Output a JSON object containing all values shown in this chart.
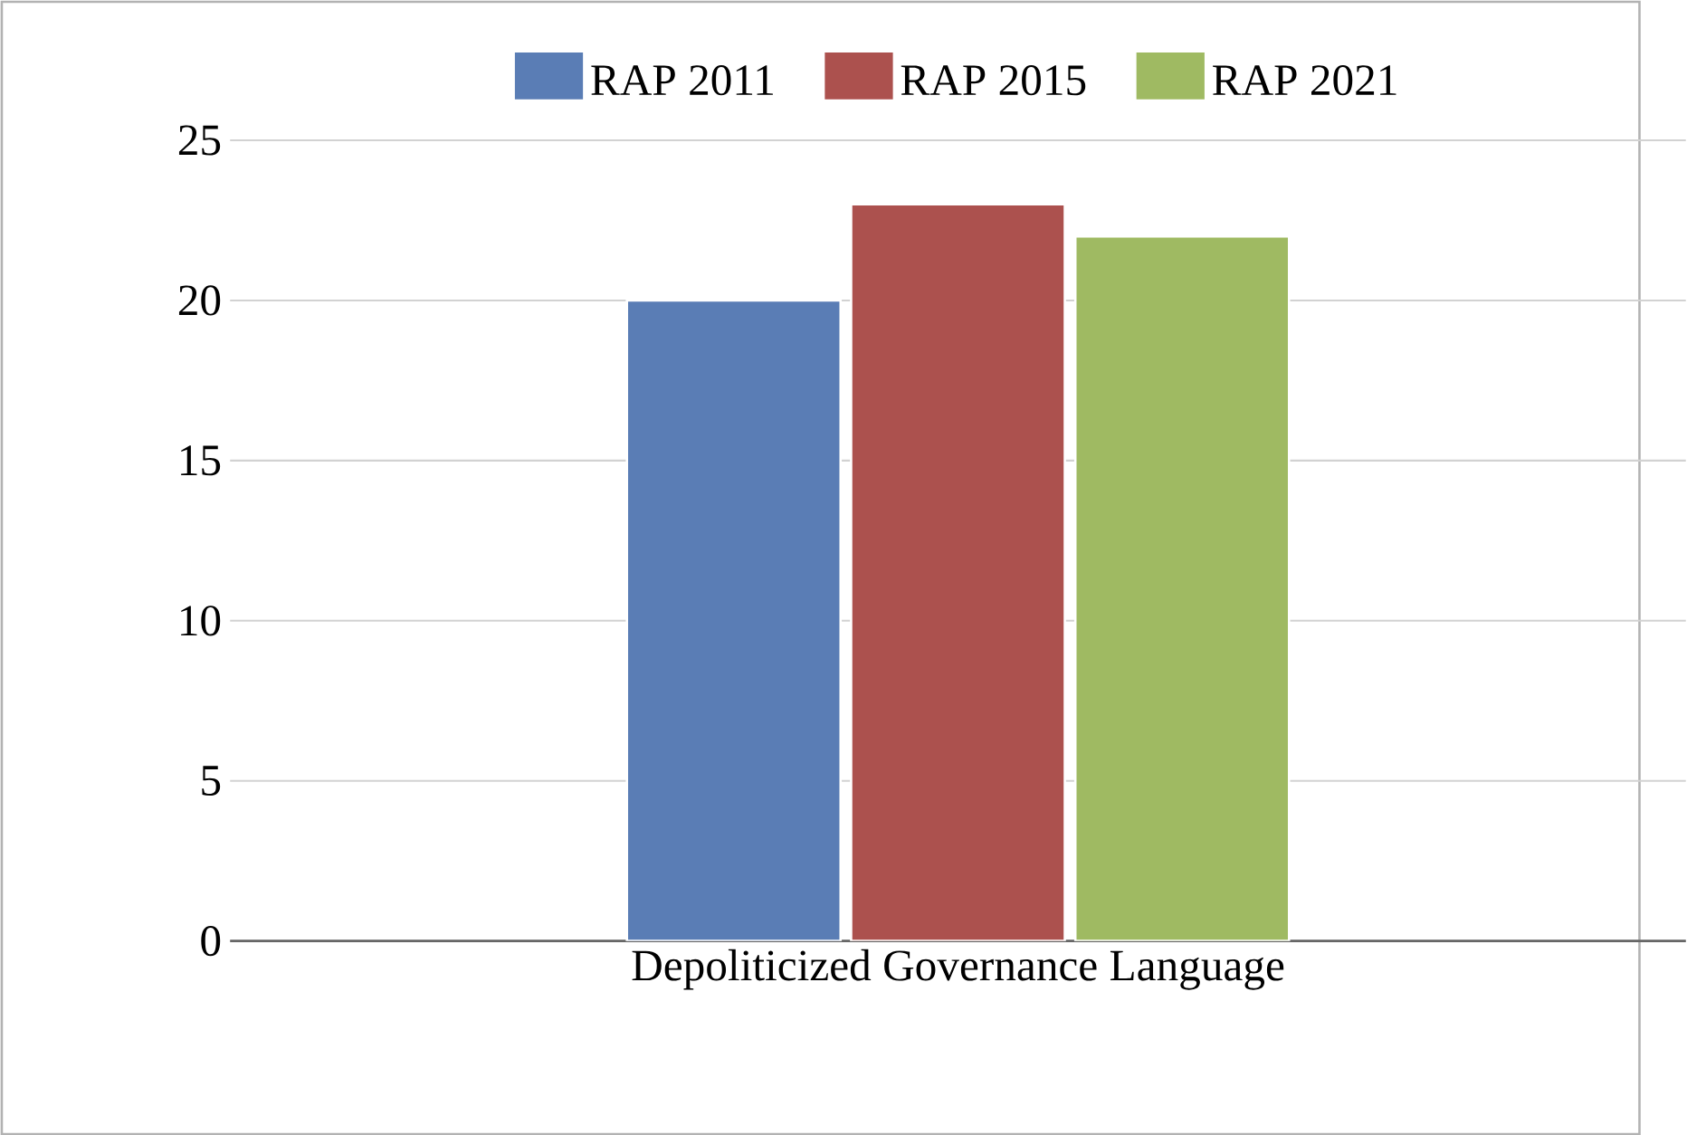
{
  "chart_data": {
    "type": "bar",
    "categories": [
      "Depoliticized Governance Language"
    ],
    "series": [
      {
        "name": "RAP 2011",
        "color": "#5a7db5",
        "values": [
          20
        ]
      },
      {
        "name": "RAP 2015",
        "color": "#ac514e",
        "values": [
          23
        ]
      },
      {
        "name": "RAP 2021",
        "color": "#9fba62",
        "values": [
          22
        ]
      }
    ],
    "ylim": [
      0,
      25
    ],
    "yticks": [
      0,
      5,
      10,
      15,
      20,
      25
    ],
    "grid": "y",
    "legend": "top"
  }
}
